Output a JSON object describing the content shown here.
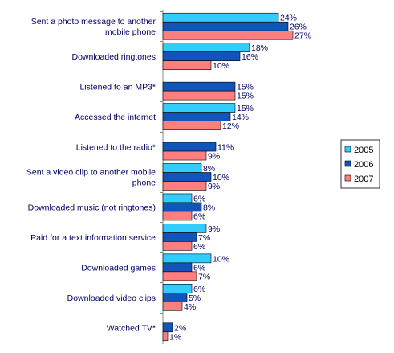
{
  "colors": {
    "2005": "#33ccff",
    "2006": "#1155bb",
    "2007": "#ff7f7f",
    "text": "#000066",
    "axis": "#888888"
  },
  "chart_data": {
    "type": "bar",
    "orientation": "horizontal",
    "title": "",
    "xlabel": "",
    "ylabel": "",
    "xlim": [
      0,
      27
    ],
    "grid": false,
    "legend_position": "right",
    "value_suffix": "%",
    "categories": [
      [
        "Sent a photo message to another",
        "mobile phone"
      ],
      [
        "Downloaded ringtones"
      ],
      [
        "Listened to an MP3*"
      ],
      [
        "Accessed the internet"
      ],
      [
        "Listened to the radio*"
      ],
      [
        "Sent a video clip to another mobile",
        "phone"
      ],
      [
        "Downloaded music (not ringtones)"
      ],
      [
        "Paid for a text information service"
      ],
      [
        "Downloaded games"
      ],
      [
        "Downloaded video clips"
      ],
      [
        "Watched TV*"
      ]
    ],
    "series": [
      {
        "name": "2005",
        "values": [
          24,
          18,
          null,
          15,
          null,
          8,
          6,
          9,
          10,
          6,
          null
        ]
      },
      {
        "name": "2006",
        "values": [
          26,
          16,
          15,
          14,
          11,
          10,
          8,
          7,
          6,
          5,
          2
        ]
      },
      {
        "name": "2007",
        "values": [
          27,
          10,
          15,
          12,
          9,
          9,
          6,
          6,
          7,
          4,
          1
        ]
      }
    ]
  }
}
